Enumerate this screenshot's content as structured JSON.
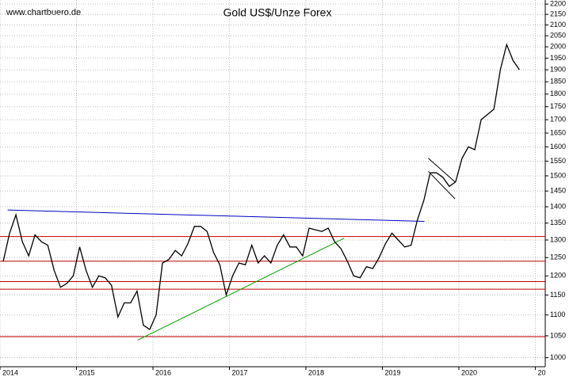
{
  "chart_data": {
    "type": "line",
    "title": "Gold US$/Unze Forex",
    "watermark": "www.chartbuero.de",
    "log_scale": true,
    "grid": true,
    "xlim": [
      2014,
      2021.13
    ],
    "xticks": [
      2014,
      2015,
      2016,
      2017,
      2018,
      2019,
      2020,
      {
        "value": 2021,
        "label": "20"
      }
    ],
    "ylim": [
      980,
      2220
    ],
    "yticks": [
      1000,
      1050,
      1100,
      1150,
      1200,
      1250,
      1300,
      1350,
      1400,
      1450,
      1500,
      1550,
      1600,
      1650,
      1700,
      1750,
      1800,
      1850,
      1900,
      1950,
      2000,
      2050,
      2100,
      2150,
      2200
    ],
    "series": [
      {
        "color": "#000000",
        "x": [
          2014.042,
          2014.125,
          2014.208,
          2014.292,
          2014.375,
          2014.458,
          2014.542,
          2014.625,
          2014.708,
          2014.792,
          2014.875,
          2014.958,
          2015.042,
          2015.125,
          2015.208,
          2015.292,
          2015.375,
          2015.458,
          2015.542,
          2015.625,
          2015.708,
          2015.792,
          2015.875,
          2015.958,
          2016.042,
          2016.125,
          2016.208,
          2016.292,
          2016.375,
          2016.458,
          2016.542,
          2016.625,
          2016.708,
          2016.792,
          2016.875,
          2016.958,
          2017.042,
          2017.125,
          2017.208,
          2017.292,
          2017.375,
          2017.458,
          2017.542,
          2017.625,
          2017.708,
          2017.792,
          2017.875,
          2017.958,
          2018.042,
          2018.125,
          2018.208,
          2018.292,
          2018.375,
          2018.458,
          2018.542,
          2018.625,
          2018.708,
          2018.792,
          2018.875,
          2018.958,
          2019.042,
          2019.125,
          2019.208,
          2019.292,
          2019.375,
          2019.458,
          2019.542,
          2019.625,
          2019.708,
          2019.792,
          2019.875,
          2019.958,
          2020.042,
          2020.125,
          2020.208,
          2020.292,
          2020.375,
          2020.458,
          2020.542,
          2020.625,
          2020.708,
          2020.792
        ],
        "values": [
          1240,
          1320,
          1375,
          1295,
          1255,
          1315,
          1295,
          1285,
          1215,
          1170,
          1180,
          1200,
          1280,
          1215,
          1170,
          1200,
          1195,
          1175,
          1095,
          1130,
          1130,
          1160,
          1075,
          1065,
          1100,
          1235,
          1245,
          1270,
          1255,
          1290,
          1340,
          1340,
          1325,
          1265,
          1230,
          1150,
          1200,
          1235,
          1230,
          1285,
          1235,
          1255,
          1235,
          1285,
          1315,
          1280,
          1280,
          1255,
          1335,
          1330,
          1325,
          1335,
          1295,
          1275,
          1240,
          1200,
          1195,
          1225,
          1220,
          1250,
          1290,
          1320,
          1300,
          1280,
          1285,
          1360,
          1420,
          1510,
          1510,
          1495,
          1465,
          1480,
          1560,
          1600,
          1590,
          1700,
          1720,
          1740,
          1900,
          2010,
          1940,
          1900
        ]
      }
    ],
    "hlines": [
      {
        "color": "#c00000",
        "value": 1310
      },
      {
        "color": "#c00000",
        "value": 1240
      },
      {
        "color": "#c00000",
        "value": 1185
      },
      {
        "color": "#c00000",
        "value": 1165
      },
      {
        "color": "#c00000",
        "value": 1048
      }
    ],
    "trend_lines": [
      {
        "color": "#0000c0",
        "x": [
          2014.1,
          2019.55
        ],
        "values": [
          1390,
          1355
        ]
      },
      {
        "color": "#00a000",
        "x": [
          2015.8,
          2018.5
        ],
        "values": [
          1040,
          1305
        ]
      },
      {
        "color": "#000000",
        "x": [
          2019.6,
          2019.95
        ],
        "values": [
          1560,
          1480
        ]
      },
      {
        "color": "#000000",
        "x": [
          2019.6,
          2019.95
        ],
        "values": [
          1515,
          1425
        ]
      }
    ]
  }
}
